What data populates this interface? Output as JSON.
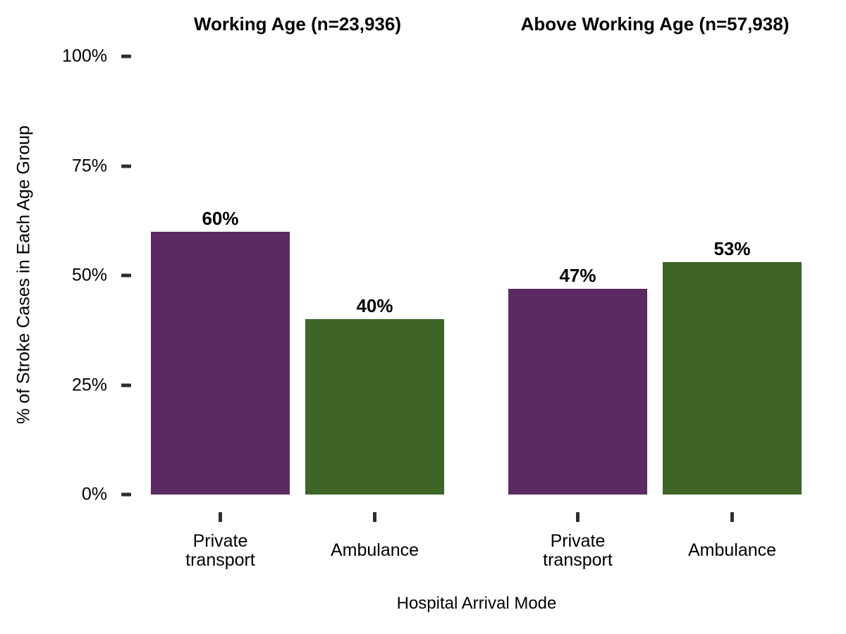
{
  "chart_data": {
    "type": "bar",
    "title": "",
    "xlabel": "Hospital Arrival Mode",
    "ylabel": "% of Stroke Cases in Each Age Group",
    "ylim": [
      0,
      100
    ],
    "grid": false,
    "legend": "none",
    "yticks": [
      {
        "value": 0,
        "label": "0%"
      },
      {
        "value": 25,
        "label": "25%"
      },
      {
        "value": 50,
        "label": "50%"
      },
      {
        "value": 75,
        "label": "75%"
      },
      {
        "value": 100,
        "label": "100%"
      }
    ],
    "categories": [
      "Private transport",
      "Ambulance"
    ],
    "facets": [
      {
        "title": "Working Age (n=23,936)",
        "categories": [
          "Private transport",
          "Ambulance"
        ],
        "values": [
          60,
          40
        ],
        "value_labels": [
          "60%",
          "40%"
        ]
      },
      {
        "title": "Above Working Age (n=57,938)",
        "categories": [
          "Private transport",
          "Ambulance"
        ],
        "values": [
          47,
          53
        ],
        "value_labels": [
          "47%",
          "53%"
        ]
      }
    ],
    "colors": {
      "Private transport": "#5c2a62",
      "Ambulance": "#3e6426"
    },
    "tick_color": "#2e2e2e",
    "text_color": "#000000",
    "background": "#ffffff"
  }
}
